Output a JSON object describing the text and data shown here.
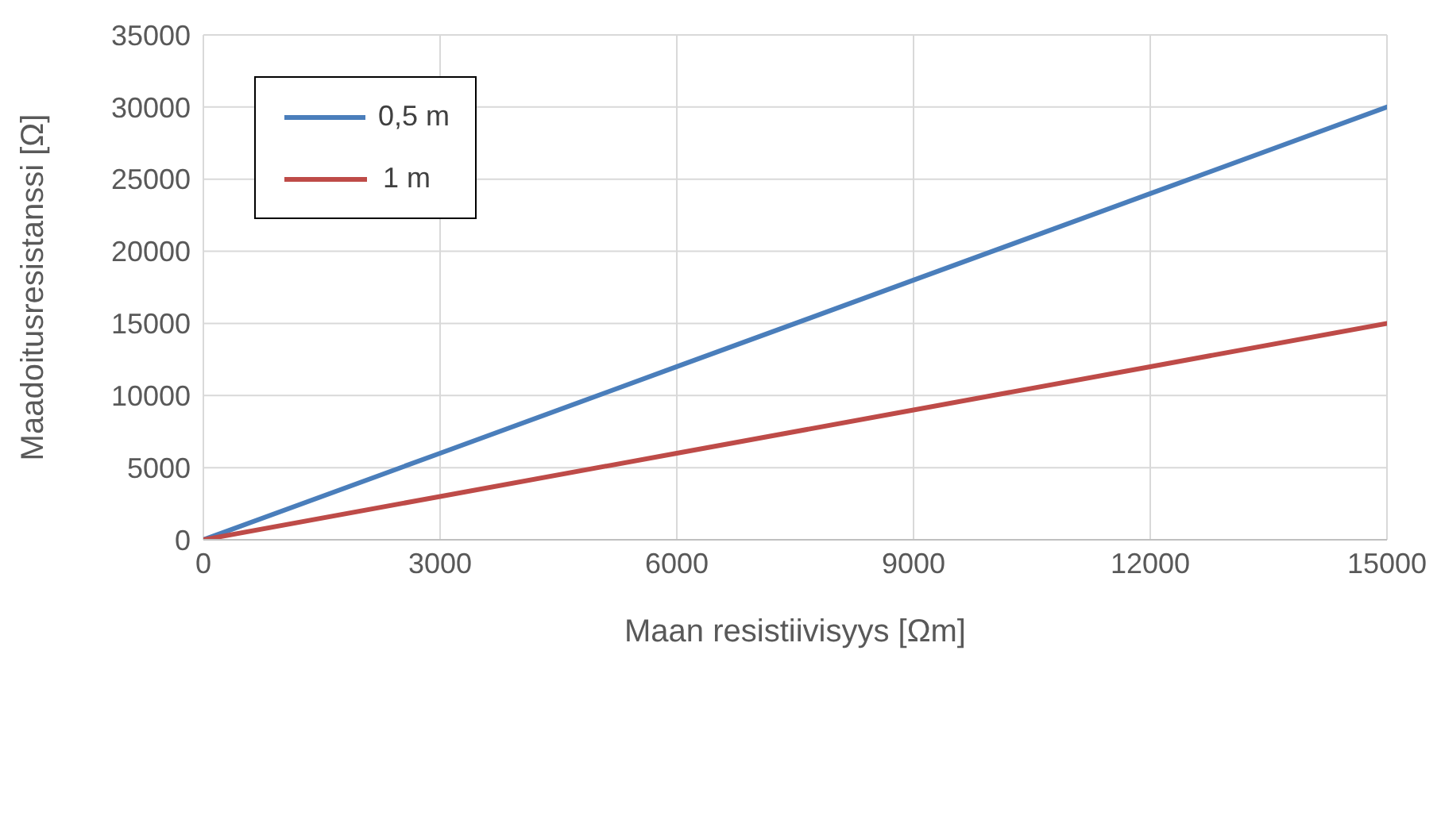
{
  "chart_data": {
    "type": "line",
    "xlabel": "Maan resistiivisyys [Ωm]",
    "ylabel": "Maadoitusresistanssi [Ω]",
    "x": [
      0,
      3000,
      6000,
      9000,
      12000,
      15000
    ],
    "series": [
      {
        "name": "0,5 m",
        "color": "#4a7ebb",
        "values": [
          0,
          6000,
          12000,
          18000,
          24000,
          30000
        ]
      },
      {
        "name": "1 m",
        "color": "#be4b48",
        "values": [
          0,
          3000,
          6000,
          9000,
          12000,
          15000
        ]
      }
    ],
    "xlim": [
      0,
      15000
    ],
    "xticks": [
      0,
      3000,
      6000,
      9000,
      12000,
      15000
    ],
    "ylim": [
      0,
      35000
    ],
    "yticks": [
      0,
      5000,
      10000,
      15000,
      20000,
      25000,
      30000,
      35000
    ],
    "grid": true,
    "legend": "top left",
    "marker": "none",
    "line_style": "solid"
  }
}
